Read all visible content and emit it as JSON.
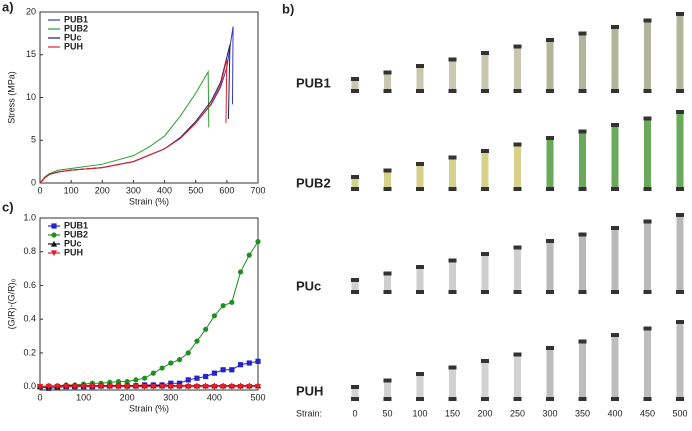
{
  "chart_data": [
    {
      "type": "line",
      "panel_label": "a)",
      "xlabel": "Strain (%)",
      "ylabel": "Stress (MPa)",
      "xlim": [
        0,
        700
      ],
      "xticks": [
        0,
        100,
        200,
        300,
        400,
        500,
        600,
        700
      ],
      "ylim": [
        0,
        20
      ],
      "yticks": [
        0,
        5,
        10,
        15,
        20
      ],
      "grid": false,
      "legend": "upper-left",
      "markers": false,
      "series": [
        {
          "name": "PUB1",
          "color": "#3a3ab8",
          "x": [
            0,
            15,
            30,
            60,
            100,
            200,
            300,
            400,
            450,
            500,
            550,
            580,
            600,
            620,
            618
          ],
          "y": [
            0,
            0.6,
            1.0,
            1.3,
            1.5,
            1.8,
            2.5,
            4.0,
            5.2,
            7.0,
            9.2,
            11.2,
            13.5,
            18.3,
            9.2
          ]
        },
        {
          "name": "PUB2",
          "color": "#2e9b2e",
          "x": [
            0,
            15,
            30,
            60,
            100,
            200,
            300,
            350,
            400,
            450,
            500,
            540,
            542
          ],
          "y": [
            0,
            0.7,
            1.1,
            1.5,
            1.7,
            2.2,
            3.2,
            4.2,
            5.5,
            7.8,
            10.5,
            13.0,
            6.5
          ]
        },
        {
          "name": "PUc",
          "color": "#1e1e5a",
          "x": [
            0,
            15,
            30,
            60,
            100,
            200,
            300,
            400,
            450,
            500,
            550,
            580,
            610,
            605
          ],
          "y": [
            0,
            0.6,
            1.0,
            1.3,
            1.5,
            1.8,
            2.5,
            4.0,
            5.3,
            7.2,
            9.6,
            11.8,
            16.2,
            7.5
          ]
        },
        {
          "name": "PUH",
          "color": "#e0202a",
          "x": [
            0,
            15,
            30,
            60,
            100,
            200,
            300,
            400,
            450,
            500,
            550,
            580,
            600,
            597
          ],
          "y": [
            0,
            0.6,
            1.0,
            1.3,
            1.5,
            1.8,
            2.5,
            4.0,
            5.2,
            7.0,
            9.3,
            11.5,
            14.5,
            7.0
          ]
        }
      ]
    },
    {
      "type": "line",
      "panel_label": "c)",
      "xlabel": "Strain (%)",
      "ylabel": "(G/R)-(G/R)₀",
      "xlim": [
        0,
        500
      ],
      "xticks": [
        0,
        100,
        200,
        300,
        400,
        500
      ],
      "ylim": [
        -0.02,
        1.0
      ],
      "yticks": [
        {
          "value": 0,
          "label": "0.0"
        },
        {
          "value": 0.2,
          "label": "0.2"
        },
        {
          "value": 0.4,
          "label": "0.4"
        },
        {
          "value": 0.6,
          "label": "0.6"
        },
        {
          "value": 0.8,
          "label": "0.8"
        },
        {
          "value": 1.0,
          "label": "1.0"
        }
      ],
      "grid": false,
      "legend": "upper-left",
      "markers": true,
      "x": [
        0,
        20,
        40,
        60,
        80,
        100,
        120,
        140,
        160,
        180,
        200,
        220,
        240,
        260,
        280,
        300,
        320,
        340,
        360,
        380,
        400,
        420,
        440,
        460,
        480,
        500
      ],
      "series": [
        {
          "name": "PUB1",
          "color": "#2424c8",
          "marker": "square",
          "y": [
            0,
            -0.01,
            -0.005,
            0,
            0,
            0,
            0,
            0.005,
            0.005,
            0.005,
            0.005,
            0.005,
            0.01,
            0.01,
            0.01,
            0.02,
            0.02,
            0.04,
            0.05,
            0.06,
            0.08,
            0.1,
            0.1,
            0.13,
            0.14,
            0.15
          ]
        },
        {
          "name": "PUB2",
          "color": "#1f8f1f",
          "marker": "circle",
          "y": [
            0,
            0.005,
            0.005,
            0.01,
            0.01,
            0.015,
            0.02,
            0.02,
            0.025,
            0.03,
            0.03,
            0.04,
            0.05,
            0.08,
            0.11,
            0.14,
            0.16,
            0.2,
            0.27,
            0.34,
            0.42,
            0.48,
            0.5,
            0.68,
            0.78,
            0.86
          ]
        },
        {
          "name": "PUc",
          "color": "#111111",
          "marker": "triangle",
          "y": [
            0,
            0,
            0,
            0.005,
            0.005,
            0.005,
            0.005,
            0.005,
            0.005,
            0.005,
            0.005,
            0.005,
            0.005,
            0.005,
            0.005,
            0.005,
            0.005,
            0.005,
            0.005,
            0.005,
            0.005,
            0.005,
            0.005,
            0.005,
            0.005,
            0.005
          ]
        },
        {
          "name": "PUH",
          "color": "#e0202a",
          "marker": "triangle-down",
          "y": [
            0,
            0,
            0,
            0,
            0,
            0,
            0,
            0,
            0,
            0,
            0,
            0,
            0,
            0,
            0,
            0,
            0,
            0,
            0,
            0,
            0,
            0,
            0,
            0,
            0,
            0
          ]
        }
      ]
    }
  ],
  "panel_b": {
    "panel_label": "b)",
    "rows": [
      "PUB1",
      "PUB2",
      "PUc",
      "PUH"
    ],
    "strain_label": "Strain:",
    "strains": [
      0,
      50,
      100,
      150,
      200,
      250,
      300,
      350,
      400,
      450,
      500
    ]
  }
}
